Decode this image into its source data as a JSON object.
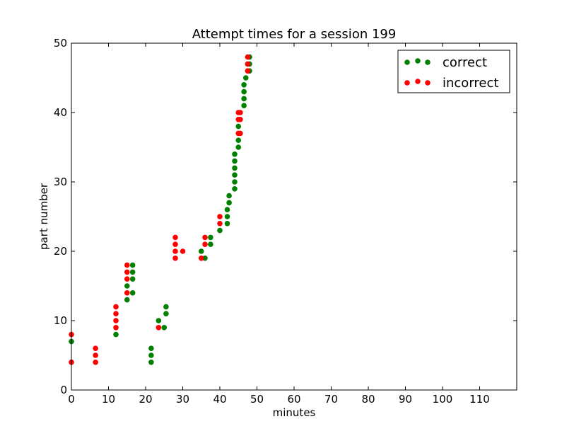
{
  "chart_data": {
    "type": "scatter",
    "title": "Attempt times for a session 199",
    "xlabel": "minutes",
    "ylabel": "part number",
    "xlim": [
      0,
      120
    ],
    "ylim": [
      0,
      50
    ],
    "xticks": [
      0,
      10,
      20,
      30,
      40,
      50,
      60,
      70,
      80,
      90,
      100,
      110
    ],
    "yticks": [
      0,
      10,
      20,
      30,
      40,
      50
    ],
    "grid": false,
    "legend": "top-right",
    "series": [
      {
        "name": "correct",
        "color": "#008000",
        "points": [
          [
            0,
            7
          ],
          [
            12,
            8
          ],
          [
            15,
            13
          ],
          [
            15,
            15
          ],
          [
            16.5,
            14
          ],
          [
            16.5,
            16
          ],
          [
            16.5,
            17
          ],
          [
            16.5,
            18
          ],
          [
            21.5,
            4
          ],
          [
            21.5,
            5
          ],
          [
            21.5,
            6
          ],
          [
            23.5,
            10
          ],
          [
            25,
            9
          ],
          [
            25.5,
            11
          ],
          [
            25.5,
            12
          ],
          [
            35,
            20
          ],
          [
            36,
            19
          ],
          [
            37.5,
            21
          ],
          [
            37.5,
            22
          ],
          [
            40,
            23
          ],
          [
            42,
            24
          ],
          [
            42,
            25
          ],
          [
            42,
            26
          ],
          [
            42.5,
            27
          ],
          [
            42.5,
            28
          ],
          [
            44,
            29
          ],
          [
            44,
            30
          ],
          [
            44,
            31
          ],
          [
            44,
            32
          ],
          [
            44,
            33
          ],
          [
            44,
            34
          ],
          [
            45,
            35
          ],
          [
            45,
            36
          ],
          [
            45,
            38
          ],
          [
            46.5,
            41
          ],
          [
            46.5,
            42
          ],
          [
            46.5,
            43
          ],
          [
            46.5,
            44
          ],
          [
            47,
            45
          ],
          [
            48,
            46
          ],
          [
            48,
            47
          ],
          [
            48,
            48
          ]
        ]
      },
      {
        "name": "incorrect",
        "color": "#ff0000",
        "points": [
          [
            0,
            4
          ],
          [
            0,
            8
          ],
          [
            6.5,
            4
          ],
          [
            6.5,
            5
          ],
          [
            6.5,
            6
          ],
          [
            12,
            9
          ],
          [
            12,
            10
          ],
          [
            12,
            11
          ],
          [
            12,
            12
          ],
          [
            15,
            14
          ],
          [
            15,
            16
          ],
          [
            15,
            17
          ],
          [
            15,
            18
          ],
          [
            23.5,
            9
          ],
          [
            28,
            19
          ],
          [
            28,
            20
          ],
          [
            28,
            21
          ],
          [
            28,
            22
          ],
          [
            30,
            20
          ],
          [
            35,
            19
          ],
          [
            36,
            21
          ],
          [
            36,
            22
          ],
          [
            40,
            24
          ],
          [
            40,
            25
          ],
          [
            45,
            37
          ],
          [
            45,
            39
          ],
          [
            45,
            40
          ],
          [
            45.5,
            37
          ],
          [
            45.5,
            39
          ],
          [
            45.5,
            40
          ],
          [
            47.5,
            46
          ],
          [
            47.5,
            47
          ],
          [
            47.5,
            48
          ]
        ]
      }
    ]
  }
}
